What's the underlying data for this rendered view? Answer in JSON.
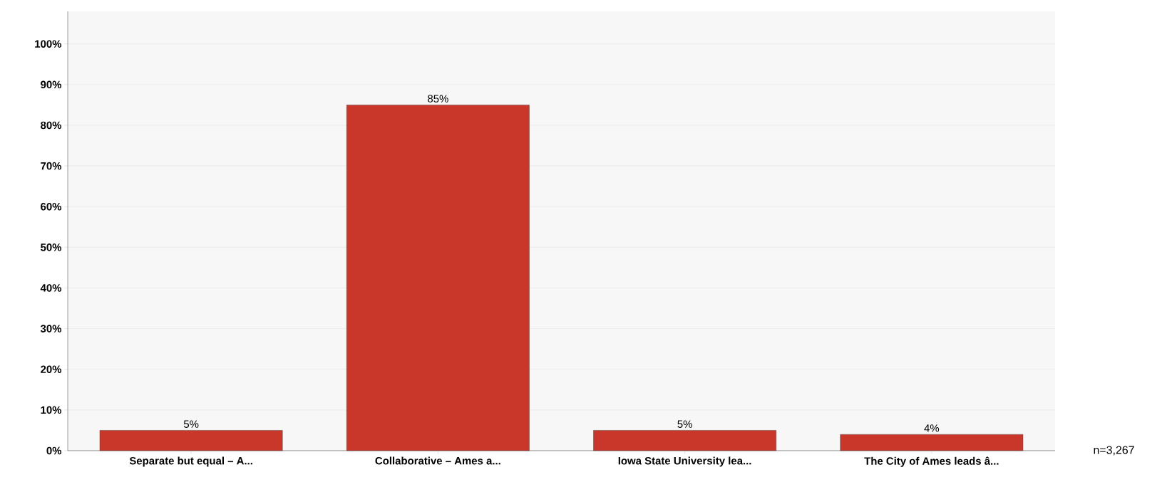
{
  "chart_data": {
    "type": "bar",
    "categories": [
      "Separate but equal – A...",
      "Collaborative – Ames a...",
      "Iowa State University lea...",
      "The City of Ames leads â..."
    ],
    "values": [
      5,
      85,
      5,
      4
    ],
    "value_labels": [
      "5%",
      "85%",
      "5%",
      "4%"
    ],
    "color": "#c8372a",
    "ylim": [
      0,
      108
    ],
    "yticks": [
      {
        "value": 0,
        "label": "0%"
      },
      {
        "value": 10,
        "label": "10%"
      },
      {
        "value": 20,
        "label": "20%"
      },
      {
        "value": 30,
        "label": "30%"
      },
      {
        "value": 40,
        "label": "40%"
      },
      {
        "value": 50,
        "label": "50%"
      },
      {
        "value": 60,
        "label": "60%"
      },
      {
        "value": 70,
        "label": "70%"
      },
      {
        "value": 80,
        "label": "80%"
      },
      {
        "value": 90,
        "label": "90%"
      },
      {
        "value": 100,
        "label": "100%"
      }
    ],
    "grid": "y",
    "annotations": [
      "n=3,267"
    ]
  }
}
